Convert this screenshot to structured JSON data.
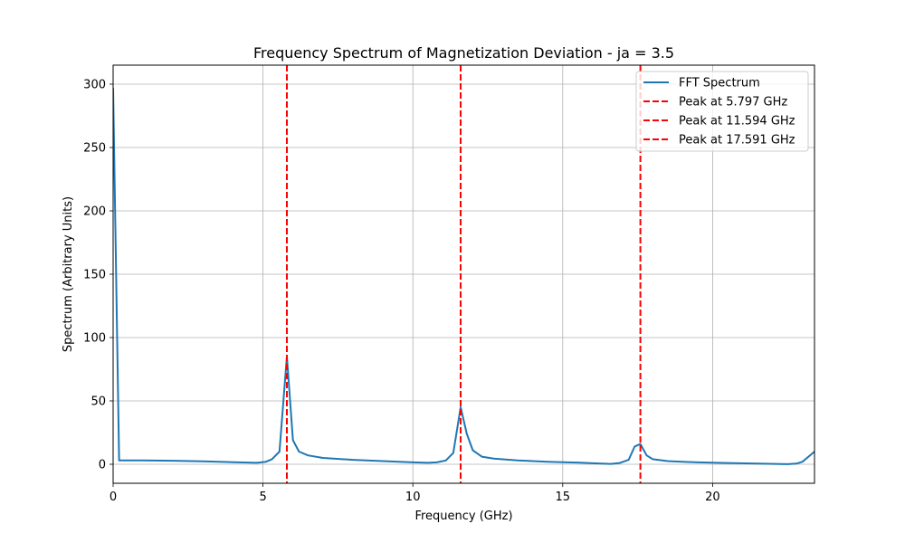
{
  "chart_data": {
    "type": "line",
    "title": "Frequency Spectrum of Magnetization Deviation - ja = 3.5",
    "xlabel": "Frequency (GHz)",
    "ylabel": "Spectrum (Arbitrary Units)",
    "xlim": [
      0,
      23.4
    ],
    "ylim": [
      -15,
      315
    ],
    "xticks": [
      0,
      5,
      10,
      15,
      20
    ],
    "yticks": [
      0,
      50,
      100,
      150,
      200,
      250,
      300
    ],
    "grid": true,
    "legend_position": "top-right",
    "series": [
      {
        "name": "FFT Spectrum",
        "color": "#1f77b4",
        "x": [
          0,
          0.2,
          1,
          2,
          3,
          4,
          4.8,
          5.1,
          5.3,
          5.55,
          5.797,
          6.0,
          6.2,
          6.5,
          7,
          8,
          9,
          10,
          10.5,
          10.8,
          11.1,
          11.35,
          11.594,
          11.8,
          12.0,
          12.3,
          12.7,
          13.5,
          14.5,
          15.5,
          16.0,
          16.6,
          16.9,
          17.2,
          17.4,
          17.591,
          17.8,
          18.0,
          18.5,
          19.5,
          20.5,
          21.5,
          22.5,
          22.8,
          23.0,
          23.2,
          23.4
        ],
        "y": [
          297,
          3,
          3,
          2.8,
          2.3,
          1.6,
          1.2,
          2,
          4,
          10,
          85,
          19,
          10,
          7,
          5,
          3.5,
          2.5,
          1.5,
          1.2,
          1.5,
          3,
          9,
          45,
          24,
          11,
          6,
          4.5,
          3,
          2,
          1.3,
          0.8,
          0.3,
          1,
          3.5,
          14,
          16,
          7,
          4,
          2.5,
          1.5,
          1,
          0.5,
          0.1,
          0.5,
          2,
          6,
          10
        ]
      }
    ],
    "vlines": [
      {
        "name": "Peak at 5.797 GHz",
        "x": 5.797,
        "color": "#ff0000",
        "style": "dashed"
      },
      {
        "name": "Peak at 11.594 GHz",
        "x": 11.594,
        "color": "#ff0000",
        "style": "dashed"
      },
      {
        "name": "Peak at 17.591 GHz",
        "x": 17.591,
        "color": "#ff0000",
        "style": "dashed"
      }
    ]
  }
}
